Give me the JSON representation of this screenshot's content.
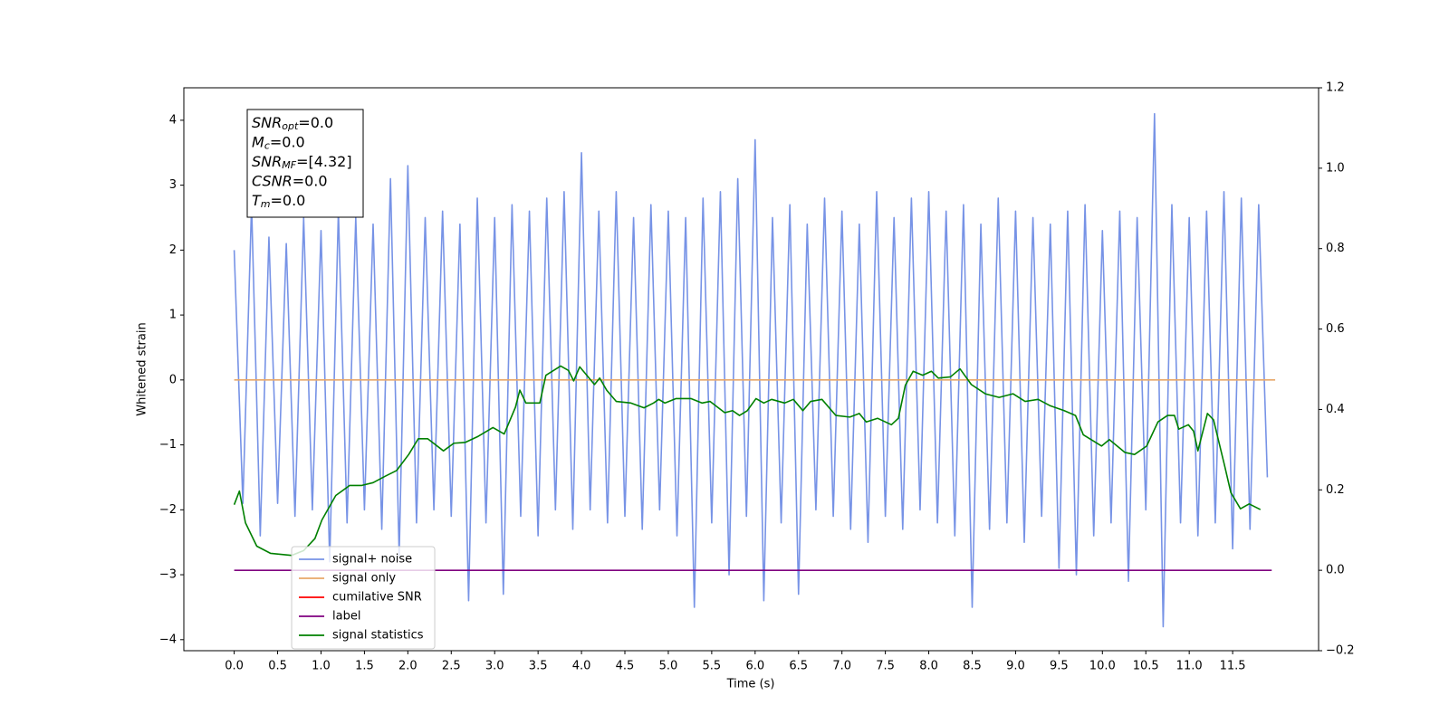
{
  "chart_data": {
    "type": "line",
    "xlabel": "Time (s)",
    "ylabel": "Whitened strain",
    "xlim": [
      -0.58,
      12.49
    ],
    "ylim": [
      -4.17,
      4.5
    ],
    "y2lim": [
      -0.2,
      1.2
    ],
    "xticks": [
      {
        "value": 0,
        "label": "0.0"
      },
      0.5,
      {
        "value": 1,
        "label": "1.0"
      },
      1.5,
      {
        "value": 2,
        "label": "2.0"
      },
      2.5,
      {
        "value": 3,
        "label": "3.0"
      },
      3.5,
      {
        "value": 4,
        "label": "4.0"
      },
      4.5,
      {
        "value": 5,
        "label": "5.0"
      },
      5.5,
      {
        "value": 6,
        "label": "6.0"
      },
      6.5,
      {
        "value": 7,
        "label": "7.0"
      },
      7.5,
      {
        "value": 8,
        "label": "8.0"
      },
      8.5,
      {
        "value": 9,
        "label": "9.0"
      },
      9.5,
      {
        "value": 10,
        "label": "10.0"
      },
      10.5,
      {
        "value": 11,
        "label": "11.0"
      },
      11.5
    ],
    "yticks": [
      {
        "value": -4,
        "label": "−4"
      },
      {
        "value": -3,
        "label": "−3"
      },
      {
        "value": -2,
        "label": "−2"
      },
      {
        "value": -1,
        "label": "−1"
      },
      0,
      1,
      2,
      3,
      4
    ],
    "y2ticks": [
      {
        "value": -0.2,
        "label": "−0.2"
      },
      {
        "value": 0,
        "label": "0.0"
      },
      0.2,
      0.4,
      0.6,
      0.8,
      {
        "value": 1,
        "label": "1.0"
      },
      1.2
    ],
    "legend": "lower left",
    "annotations": [
      {
        "text": "SNR",
        "sub": "opt",
        "suffix": "=0.0"
      },
      {
        "text": "M",
        "sub": "c",
        "suffix": "=0.0"
      },
      {
        "text": "SNR",
        "sub": "MF",
        "suffix": "=[4.32]"
      },
      {
        "text": "CSNR",
        "suffix": "=0.0"
      },
      {
        "text": "T",
        "sub": "m",
        "suffix": "=0.0"
      }
    ],
    "series": [
      {
        "name": "signal+ noise",
        "color": "#7793e6",
        "x": [
          0.0,
          0.1,
          0.2,
          0.3,
          0.4,
          0.5,
          0.6,
          0.7,
          0.8,
          0.9,
          1.0,
          1.1,
          1.2,
          1.3,
          1.4,
          1.5,
          1.6,
          1.7,
          1.8,
          1.9,
          2.0,
          2.1,
          2.2,
          2.3,
          2.4,
          2.5,
          2.6,
          2.7,
          2.8,
          2.9,
          3.0,
          3.1,
          3.2,
          3.3,
          3.4,
          3.5,
          3.6,
          3.7,
          3.8,
          3.9,
          4.0,
          4.1,
          4.2,
          4.3,
          4.4,
          4.5,
          4.6,
          4.7,
          4.8,
          4.9,
          5.0,
          5.1,
          5.2,
          5.3,
          5.4,
          5.5,
          5.6,
          5.7,
          5.8,
          5.9,
          6.0,
          6.1,
          6.2,
          6.3,
          6.4,
          6.5,
          6.6,
          6.7,
          6.8,
          6.9,
          7.0,
          7.1,
          7.2,
          7.3,
          7.4,
          7.5,
          7.6,
          7.7,
          7.8,
          7.9,
          8.0,
          8.1,
          8.2,
          8.3,
          8.4,
          8.5,
          8.6,
          8.7,
          8.8,
          8.9,
          9.0,
          9.1,
          9.2,
          9.3,
          9.4,
          9.5,
          9.6,
          9.7,
          9.8,
          9.9,
          10.0,
          10.1,
          10.2,
          10.3,
          10.4,
          10.5,
          10.6,
          10.7,
          10.8,
          10.9,
          11.0,
          11.1,
          11.2,
          11.3,
          11.4,
          11.5,
          11.6,
          11.7,
          11.8,
          11.9
        ],
        "values": [
          2.0,
          -1.9,
          2.7,
          -2.4,
          2.2,
          -1.9,
          2.1,
          -2.1,
          2.5,
          -2.0,
          2.3,
          -2.8,
          2.6,
          -2.2,
          2.5,
          -2.0,
          2.4,
          -2.3,
          3.1,
          -2.7,
          3.3,
          -2.2,
          2.5,
          -2.0,
          2.6,
          -2.1,
          2.4,
          -3.4,
          2.8,
          -2.2,
          2.5,
          -3.3,
          2.7,
          -2.1,
          2.6,
          -2.4,
          2.8,
          -2.0,
          2.9,
          -2.3,
          3.5,
          -2.0,
          2.6,
          -2.2,
          2.9,
          -2.1,
          2.5,
          -2.3,
          2.7,
          -2.0,
          2.6,
          -2.4,
          2.5,
          -3.5,
          2.8,
          -2.2,
          2.9,
          -3.0,
          3.1,
          -2.1,
          3.7,
          -3.4,
          2.5,
          -2.2,
          2.7,
          -3.3,
          2.4,
          -2.0,
          2.8,
          -2.1,
          2.6,
          -2.3,
          2.4,
          -2.5,
          2.9,
          -2.1,
          2.5,
          -2.3,
          2.8,
          -2.0,
          2.9,
          -2.2,
          2.6,
          -2.4,
          2.7,
          -3.5,
          2.4,
          -2.3,
          2.8,
          -2.2,
          2.6,
          -2.5,
          2.5,
          -2.1,
          2.4,
          -2.9,
          2.6,
          -3.0,
          2.7,
          -2.4,
          2.3,
          -2.2,
          2.6,
          -3.1,
          2.5,
          -2.0,
          4.1,
          -3.8,
          2.7,
          -2.2,
          2.5,
          -2.4,
          2.6,
          -2.2,
          2.9,
          -2.6,
          2.8,
          -2.3,
          2.7,
          -1.5
        ]
      },
      {
        "name": "signal only",
        "color": "#e8a86a",
        "x": [
          0.0,
          11.99
        ],
        "values": [
          0,
          0
        ]
      },
      {
        "name": "cumilative SNR",
        "color": "#ff0000",
        "x": [],
        "values": []
      },
      {
        "name": "label",
        "color": "#800080",
        "axis": "y2",
        "x": [
          0.0,
          11.95
        ],
        "values": [
          0,
          0
        ]
      },
      {
        "name": "signal statistics",
        "color": "#008000",
        "axis": "y2",
        "x": [
          0.0,
          0.06,
          0.13,
          0.26,
          0.42,
          0.66,
          0.8,
          0.93,
          1.01,
          1.17,
          1.33,
          1.47,
          1.6,
          1.74,
          1.87,
          2.01,
          2.12,
          2.23,
          2.41,
          2.53,
          2.66,
          2.8,
          2.98,
          3.11,
          3.24,
          3.29,
          3.36,
          3.52,
          3.59,
          3.76,
          3.85,
          3.91,
          3.98,
          4.15,
          4.21,
          4.29,
          4.4,
          4.57,
          4.72,
          4.83,
          4.89,
          4.96,
          5.09,
          5.26,
          5.39,
          5.48,
          5.65,
          5.74,
          5.82,
          5.91,
          6.01,
          6.1,
          6.19,
          6.34,
          6.44,
          6.55,
          6.64,
          6.77,
          6.93,
          7.09,
          7.2,
          7.28,
          7.41,
          7.57,
          7.65,
          7.73,
          7.82,
          7.93,
          8.03,
          8.11,
          8.25,
          8.36,
          8.49,
          8.65,
          8.81,
          8.97,
          9.11,
          9.26,
          9.4,
          9.56,
          9.69,
          9.78,
          9.99,
          10.08,
          10.26,
          10.37,
          10.51,
          10.64,
          10.75,
          10.83,
          10.88,
          10.99,
          11.05,
          11.1,
          11.21,
          11.28,
          11.41,
          11.48,
          11.59,
          11.69,
          11.82
        ],
        "values": [
          0.163,
          0.197,
          0.118,
          0.06,
          0.042,
          0.037,
          0.049,
          0.079,
          0.125,
          0.186,
          0.211,
          0.211,
          0.218,
          0.234,
          0.248,
          0.288,
          0.327,
          0.327,
          0.297,
          0.316,
          0.318,
          0.332,
          0.355,
          0.339,
          0.406,
          0.448,
          0.416,
          0.416,
          0.485,
          0.508,
          0.497,
          0.471,
          0.506,
          0.462,
          0.478,
          0.448,
          0.42,
          0.416,
          0.404,
          0.416,
          0.425,
          0.416,
          0.427,
          0.427,
          0.416,
          0.42,
          0.392,
          0.397,
          0.385,
          0.397,
          0.427,
          0.416,
          0.425,
          0.416,
          0.425,
          0.397,
          0.42,
          0.425,
          0.385,
          0.381,
          0.39,
          0.369,
          0.378,
          0.362,
          0.378,
          0.46,
          0.495,
          0.485,
          0.495,
          0.478,
          0.481,
          0.501,
          0.462,
          0.439,
          0.43,
          0.439,
          0.42,
          0.425,
          0.409,
          0.397,
          0.385,
          0.337,
          0.309,
          0.325,
          0.293,
          0.288,
          0.309,
          0.369,
          0.385,
          0.385,
          0.351,
          0.362,
          0.346,
          0.297,
          0.39,
          0.374,
          0.258,
          0.193,
          0.153,
          0.165,
          0.151
        ]
      }
    ]
  }
}
